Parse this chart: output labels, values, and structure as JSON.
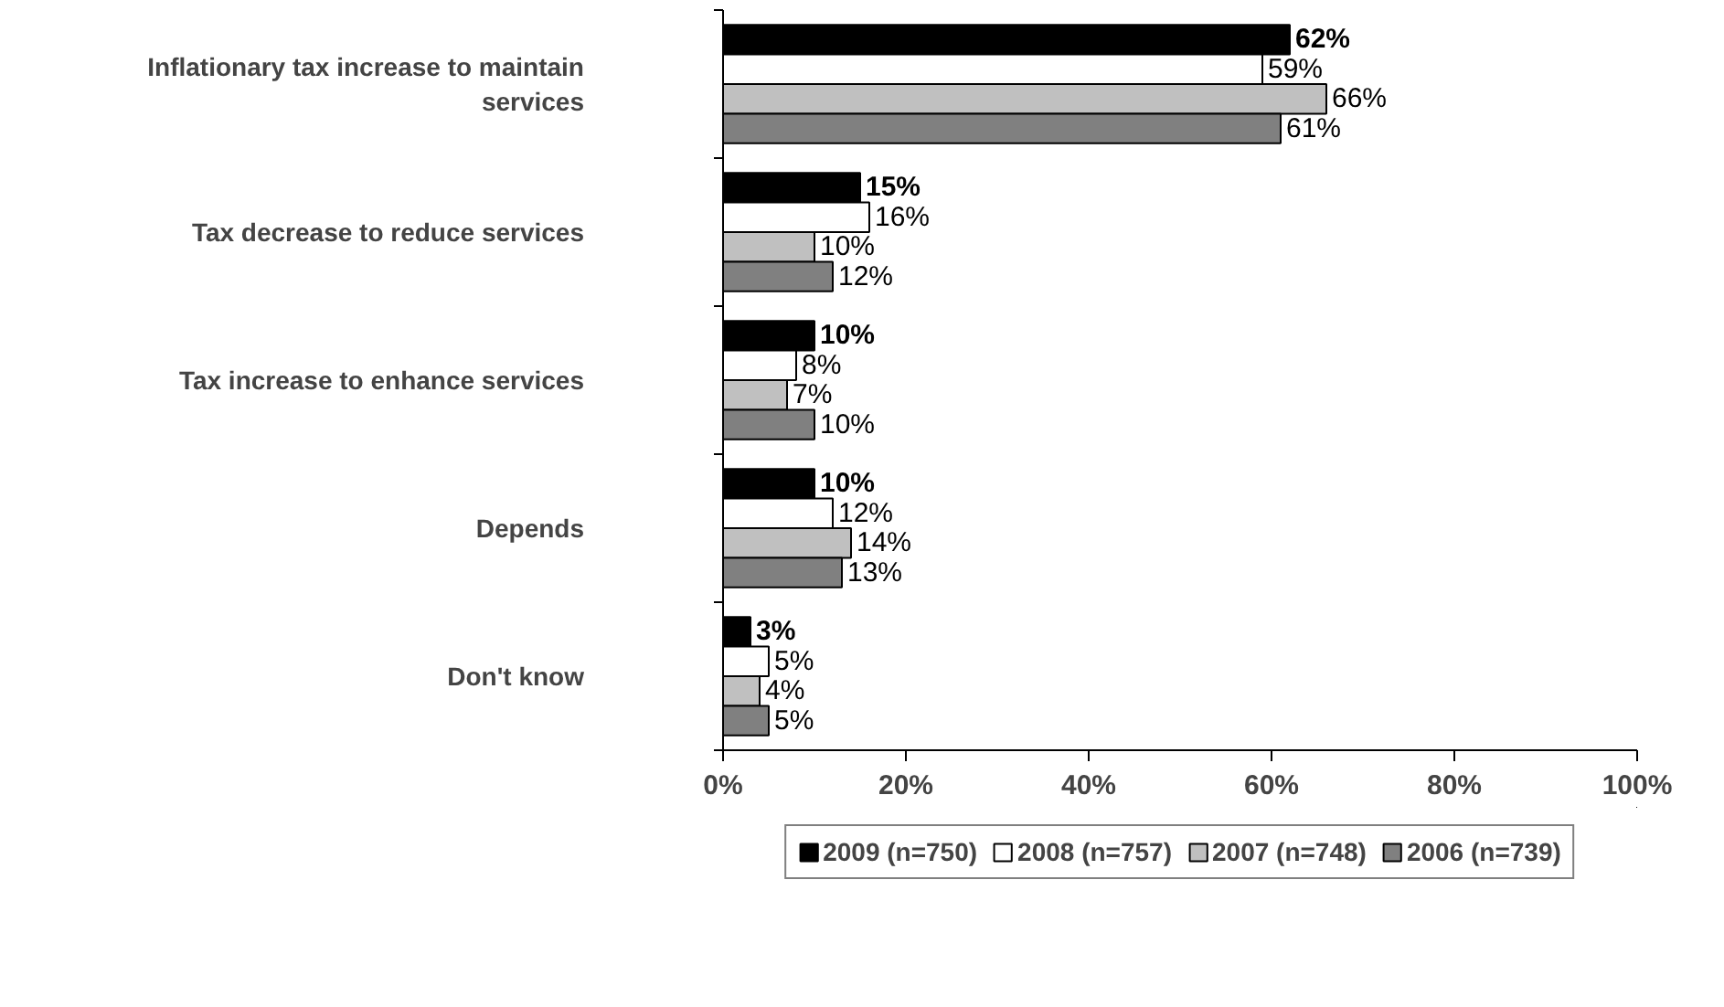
{
  "chart_data": {
    "type": "bar",
    "orientation": "horizontal",
    "categories": [
      "Inflationary tax increase to maintain services",
      "Tax decrease to reduce services",
      "Tax increase to enhance services",
      "Depends",
      "Don't know"
    ],
    "series": [
      {
        "name": "2009 (n=750)",
        "color": "#000000",
        "values": [
          62,
          15,
          10,
          10,
          3
        ],
        "value_labels": [
          "62%",
          "15%",
          "10%",
          "10%",
          "3%"
        ]
      },
      {
        "name": "2008 (n=757)",
        "color": "#ffffff",
        "values": [
          59,
          16,
          8,
          12,
          5
        ],
        "value_labels": [
          "59%",
          "16%",
          "8%",
          "12%",
          "5%"
        ]
      },
      {
        "name": "2007 (n=748)",
        "color": "#c0c0c0",
        "values": [
          66,
          10,
          7,
          14,
          4
        ],
        "value_labels": [
          "66%",
          "10%",
          "7%",
          "14%",
          "4%"
        ]
      },
      {
        "name": "2006 (n=739)",
        "color": "#808080",
        "values": [
          61,
          12,
          10,
          13,
          5
        ],
        "value_labels": [
          "61%",
          "12%",
          "10%",
          "13%",
          "5%"
        ]
      }
    ],
    "xlim": [
      0,
      100
    ],
    "xticks": [
      {
        "value": 0,
        "label": "0%"
      },
      {
        "value": 20,
        "label": "20%"
      },
      {
        "value": 40,
        "label": "40%"
      },
      {
        "value": 60,
        "label": "60%"
      },
      {
        "value": 80,
        "label": "80%"
      },
      {
        "value": 100,
        "label": "100%"
      }
    ],
    "grid": false,
    "legend": "bottom"
  }
}
